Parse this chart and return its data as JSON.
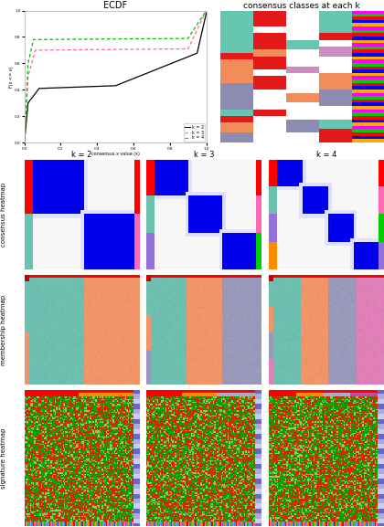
{
  "title_ecdf": "ECDF",
  "title_consensus_classes": "consensus classes at each k",
  "k_labels": [
    "k = 2",
    "k = 3",
    "k = 4"
  ],
  "row_labels": [
    "consensus heatmap",
    "membership heatmap",
    "signature heatmap"
  ],
  "ecdf_k2_color": "#000000",
  "ecdf_k3_color": "#ff6699",
  "ecdf_k4_color": "#00bb00",
  "background_color": "#ffffff",
  "consensus_block_color": "#0000ee",
  "consensus_bg_color": "#ffffff",
  "consensus_light_color": "#ddddff",
  "membership_colors": [
    "#6dbfb0",
    "#f0956a",
    "#9999bb",
    "#e080b8"
  ],
  "signature_green": "#00aa00",
  "signature_red": "#dd2200",
  "signature_light": "#88cc66",
  "sidebar_palette": [
    "#ff0000",
    "#ff69b4",
    "#00cc00",
    "#9370db",
    "#ff8c00",
    "#00aaff"
  ],
  "top_strip_colors": [
    "#ff0000",
    "#ff8800",
    "#aaaacc",
    "#cc44aa"
  ],
  "right_sidebar_colors": [
    "#6666cc",
    "#aaaadd",
    "#ccccee"
  ],
  "figsize": [
    4.32,
    5.76
  ],
  "dpi": 100
}
